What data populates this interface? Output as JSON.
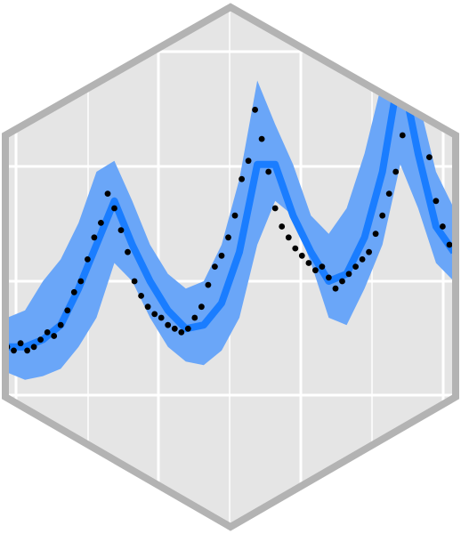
{
  "colors": {
    "background": "#ffffff",
    "panel": "#e5e5e5",
    "grid": "#ffffff",
    "border": "#b3b3b3",
    "band": "#6aa6f8",
    "line": "#1a7dff",
    "points": "#000000"
  },
  "chart_data": {
    "type": "line",
    "title": "",
    "xlabel": "",
    "ylabel": "",
    "grid": true,
    "legend": "none",
    "xlim": [
      0,
      200
    ],
    "ylim": [
      0,
      100
    ],
    "series": [
      {
        "kind": "interval_band",
        "x": [
          0,
          8,
          16,
          24,
          32,
          40,
          48,
          56,
          64,
          72,
          80,
          88,
          96,
          104,
          112,
          120,
          128,
          136,
          144,
          152,
          160,
          168,
          176,
          184,
          192,
          200
        ],
        "lower": [
          15,
          13,
          14,
          16,
          22,
          30,
          45,
          40,
          30,
          22,
          18,
          17,
          21,
          30,
          50,
          62,
          58,
          45,
          30,
          28,
          38,
          50,
          72,
          60,
          45,
          40
        ],
        "upper": [
          30,
          32,
          40,
          46,
          56,
          70,
          73,
          62,
          50,
          42,
          38,
          40,
          50,
          68,
          95,
          83,
          72,
          58,
          53,
          60,
          75,
          95,
          110,
          90,
          70,
          60
        ]
      },
      {
        "kind": "fit_line",
        "x": [
          0,
          8,
          16,
          24,
          32,
          40,
          48,
          56,
          64,
          72,
          80,
          88,
          96,
          104,
          112,
          120,
          128,
          136,
          144,
          152,
          160,
          168,
          176,
          184,
          192,
          200
        ],
        "y": [
          22,
          22,
          24,
          28,
          38,
          50,
          62,
          50,
          40,
          32,
          27,
          28,
          34,
          48,
          72,
          72,
          58,
          48,
          40,
          42,
          52,
          70,
          99,
          75,
          55,
          48
        ]
      },
      {
        "kind": "observations",
        "x": [
          0,
          3,
          6,
          9,
          12,
          15,
          18,
          21,
          24,
          27,
          30,
          33,
          36,
          39,
          42,
          45,
          48,
          51,
          54,
          57,
          60,
          63,
          66,
          69,
          72,
          75,
          78,
          81,
          84,
          87,
          90,
          93,
          96,
          99,
          102,
          105,
          108,
          111,
          114,
          117,
          120,
          123,
          126,
          129,
          132,
          135,
          138,
          141,
          144,
          147,
          150,
          153,
          156,
          159,
          162,
          165,
          168,
          171,
          174,
          177,
          180,
          183,
          186,
          189,
          192,
          195,
          198
        ],
        "y": [
          22,
          21,
          23,
          21,
          22,
          24,
          26,
          25,
          28,
          32,
          37,
          40,
          46,
          52,
          56,
          64,
          60,
          54,
          48,
          40,
          36,
          33,
          31,
          30,
          28,
          27,
          26,
          27,
          30,
          33,
          39,
          44,
          47,
          52,
          58,
          68,
          73,
          87,
          79,
          70,
          60,
          55,
          52,
          49,
          47,
          45,
          43,
          44,
          41,
          38,
          40,
          42,
          44,
          46,
          48,
          53,
          58,
          64,
          70,
          80,
          95,
          97,
          88,
          74,
          62,
          55,
          50
        ]
      }
    ]
  }
}
